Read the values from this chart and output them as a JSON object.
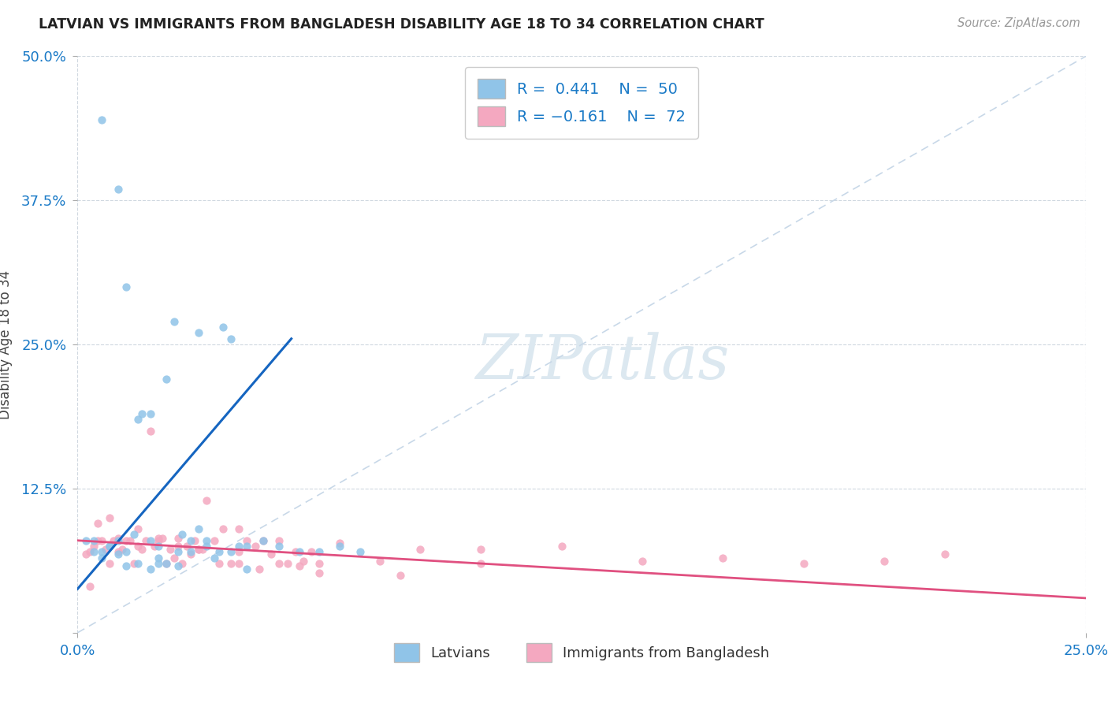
{
  "title": "LATVIAN VS IMMIGRANTS FROM BANGLADESH DISABILITY AGE 18 TO 34 CORRELATION CHART",
  "source": "Source: ZipAtlas.com",
  "xmin": 0.0,
  "xmax": 0.25,
  "ymin": 0.0,
  "ymax": 0.5,
  "latvian_R": 0.441,
  "latvian_N": 50,
  "bangladesh_R": -0.161,
  "bangladesh_N": 72,
  "blue_scatter_color": "#90c4e8",
  "pink_scatter_color": "#f4a8c0",
  "blue_line_color": "#1565c0",
  "pink_line_color": "#e05080",
  "ref_line_color": "#c8d8e8",
  "watermark_color": "#dce8f0",
  "grid_color": "#d0d8e0",
  "tick_label_color": "#1a7ac7",
  "title_color": "#222222",
  "source_color": "#999999",
  "ylabel_color": "#444444",
  "legend_text_color": "#1a7ac7",
  "latvian_x": [
    0.006,
    0.01,
    0.012,
    0.014,
    0.016,
    0.018,
    0.02,
    0.022,
    0.024,
    0.026,
    0.028,
    0.03,
    0.03,
    0.032,
    0.034,
    0.036,
    0.038,
    0.04,
    0.042,
    0.004,
    0.006,
    0.008,
    0.01,
    0.012,
    0.015,
    0.018,
    0.02,
    0.022,
    0.025,
    0.028,
    0.032,
    0.035,
    0.038,
    0.042,
    0.046,
    0.05,
    0.055,
    0.06,
    0.065,
    0.07,
    0.002,
    0.004,
    0.006,
    0.008,
    0.01,
    0.012,
    0.015,
    0.018,
    0.02,
    0.025
  ],
  "latvian_y": [
    0.445,
    0.385,
    0.3,
    0.085,
    0.19,
    0.08,
    0.065,
    0.22,
    0.27,
    0.085,
    0.08,
    0.09,
    0.26,
    0.075,
    0.065,
    0.265,
    0.255,
    0.075,
    0.055,
    0.08,
    0.07,
    0.075,
    0.08,
    0.07,
    0.185,
    0.19,
    0.075,
    0.06,
    0.07,
    0.07,
    0.08,
    0.07,
    0.07,
    0.075,
    0.08,
    0.075,
    0.07,
    0.07,
    0.075,
    0.07,
    0.08,
    0.07,
    0.065,
    0.075,
    0.068,
    0.058,
    0.06,
    0.055,
    0.06,
    0.058
  ],
  "bangladesh_x": [
    0.002,
    0.004,
    0.006,
    0.008,
    0.01,
    0.012,
    0.014,
    0.016,
    0.018,
    0.02,
    0.022,
    0.024,
    0.026,
    0.028,
    0.03,
    0.032,
    0.034,
    0.036,
    0.038,
    0.04,
    0.042,
    0.044,
    0.046,
    0.048,
    0.05,
    0.052,
    0.054,
    0.056,
    0.058,
    0.06,
    0.003,
    0.005,
    0.007,
    0.009,
    0.011,
    0.013,
    0.015,
    0.017,
    0.019,
    0.021,
    0.023,
    0.025,
    0.027,
    0.029,
    0.031,
    0.065,
    0.075,
    0.085,
    0.1,
    0.12,
    0.14,
    0.16,
    0.18,
    0.2,
    0.215,
    0.035,
    0.04,
    0.045,
    0.05,
    0.055,
    0.003,
    0.005,
    0.008,
    0.01,
    0.015,
    0.02,
    0.025,
    0.03,
    0.04,
    0.06,
    0.08,
    0.1
  ],
  "bangladesh_y": [
    0.068,
    0.075,
    0.08,
    0.06,
    0.07,
    0.08,
    0.06,
    0.072,
    0.175,
    0.08,
    0.06,
    0.065,
    0.06,
    0.068,
    0.072,
    0.115,
    0.08,
    0.09,
    0.06,
    0.09,
    0.08,
    0.075,
    0.08,
    0.068,
    0.08,
    0.06,
    0.07,
    0.062,
    0.07,
    0.06,
    0.07,
    0.08,
    0.072,
    0.08,
    0.072,
    0.08,
    0.075,
    0.08,
    0.075,
    0.082,
    0.072,
    0.082,
    0.075,
    0.08,
    0.072,
    0.078,
    0.062,
    0.072,
    0.072,
    0.075,
    0.062,
    0.065,
    0.06,
    0.062,
    0.068,
    0.06,
    0.06,
    0.055,
    0.06,
    0.058,
    0.04,
    0.095,
    0.1,
    0.082,
    0.09,
    0.082,
    0.075,
    0.072,
    0.07,
    0.052,
    0.05,
    0.06
  ],
  "lat_line_x0": 0.0,
  "lat_line_x1": 0.053,
  "lat_line_y0": 0.038,
  "lat_line_y1": 0.255,
  "bang_line_x0": 0.0,
  "bang_line_x1": 0.25,
  "bang_line_y0": 0.08,
  "bang_line_y1": 0.03
}
